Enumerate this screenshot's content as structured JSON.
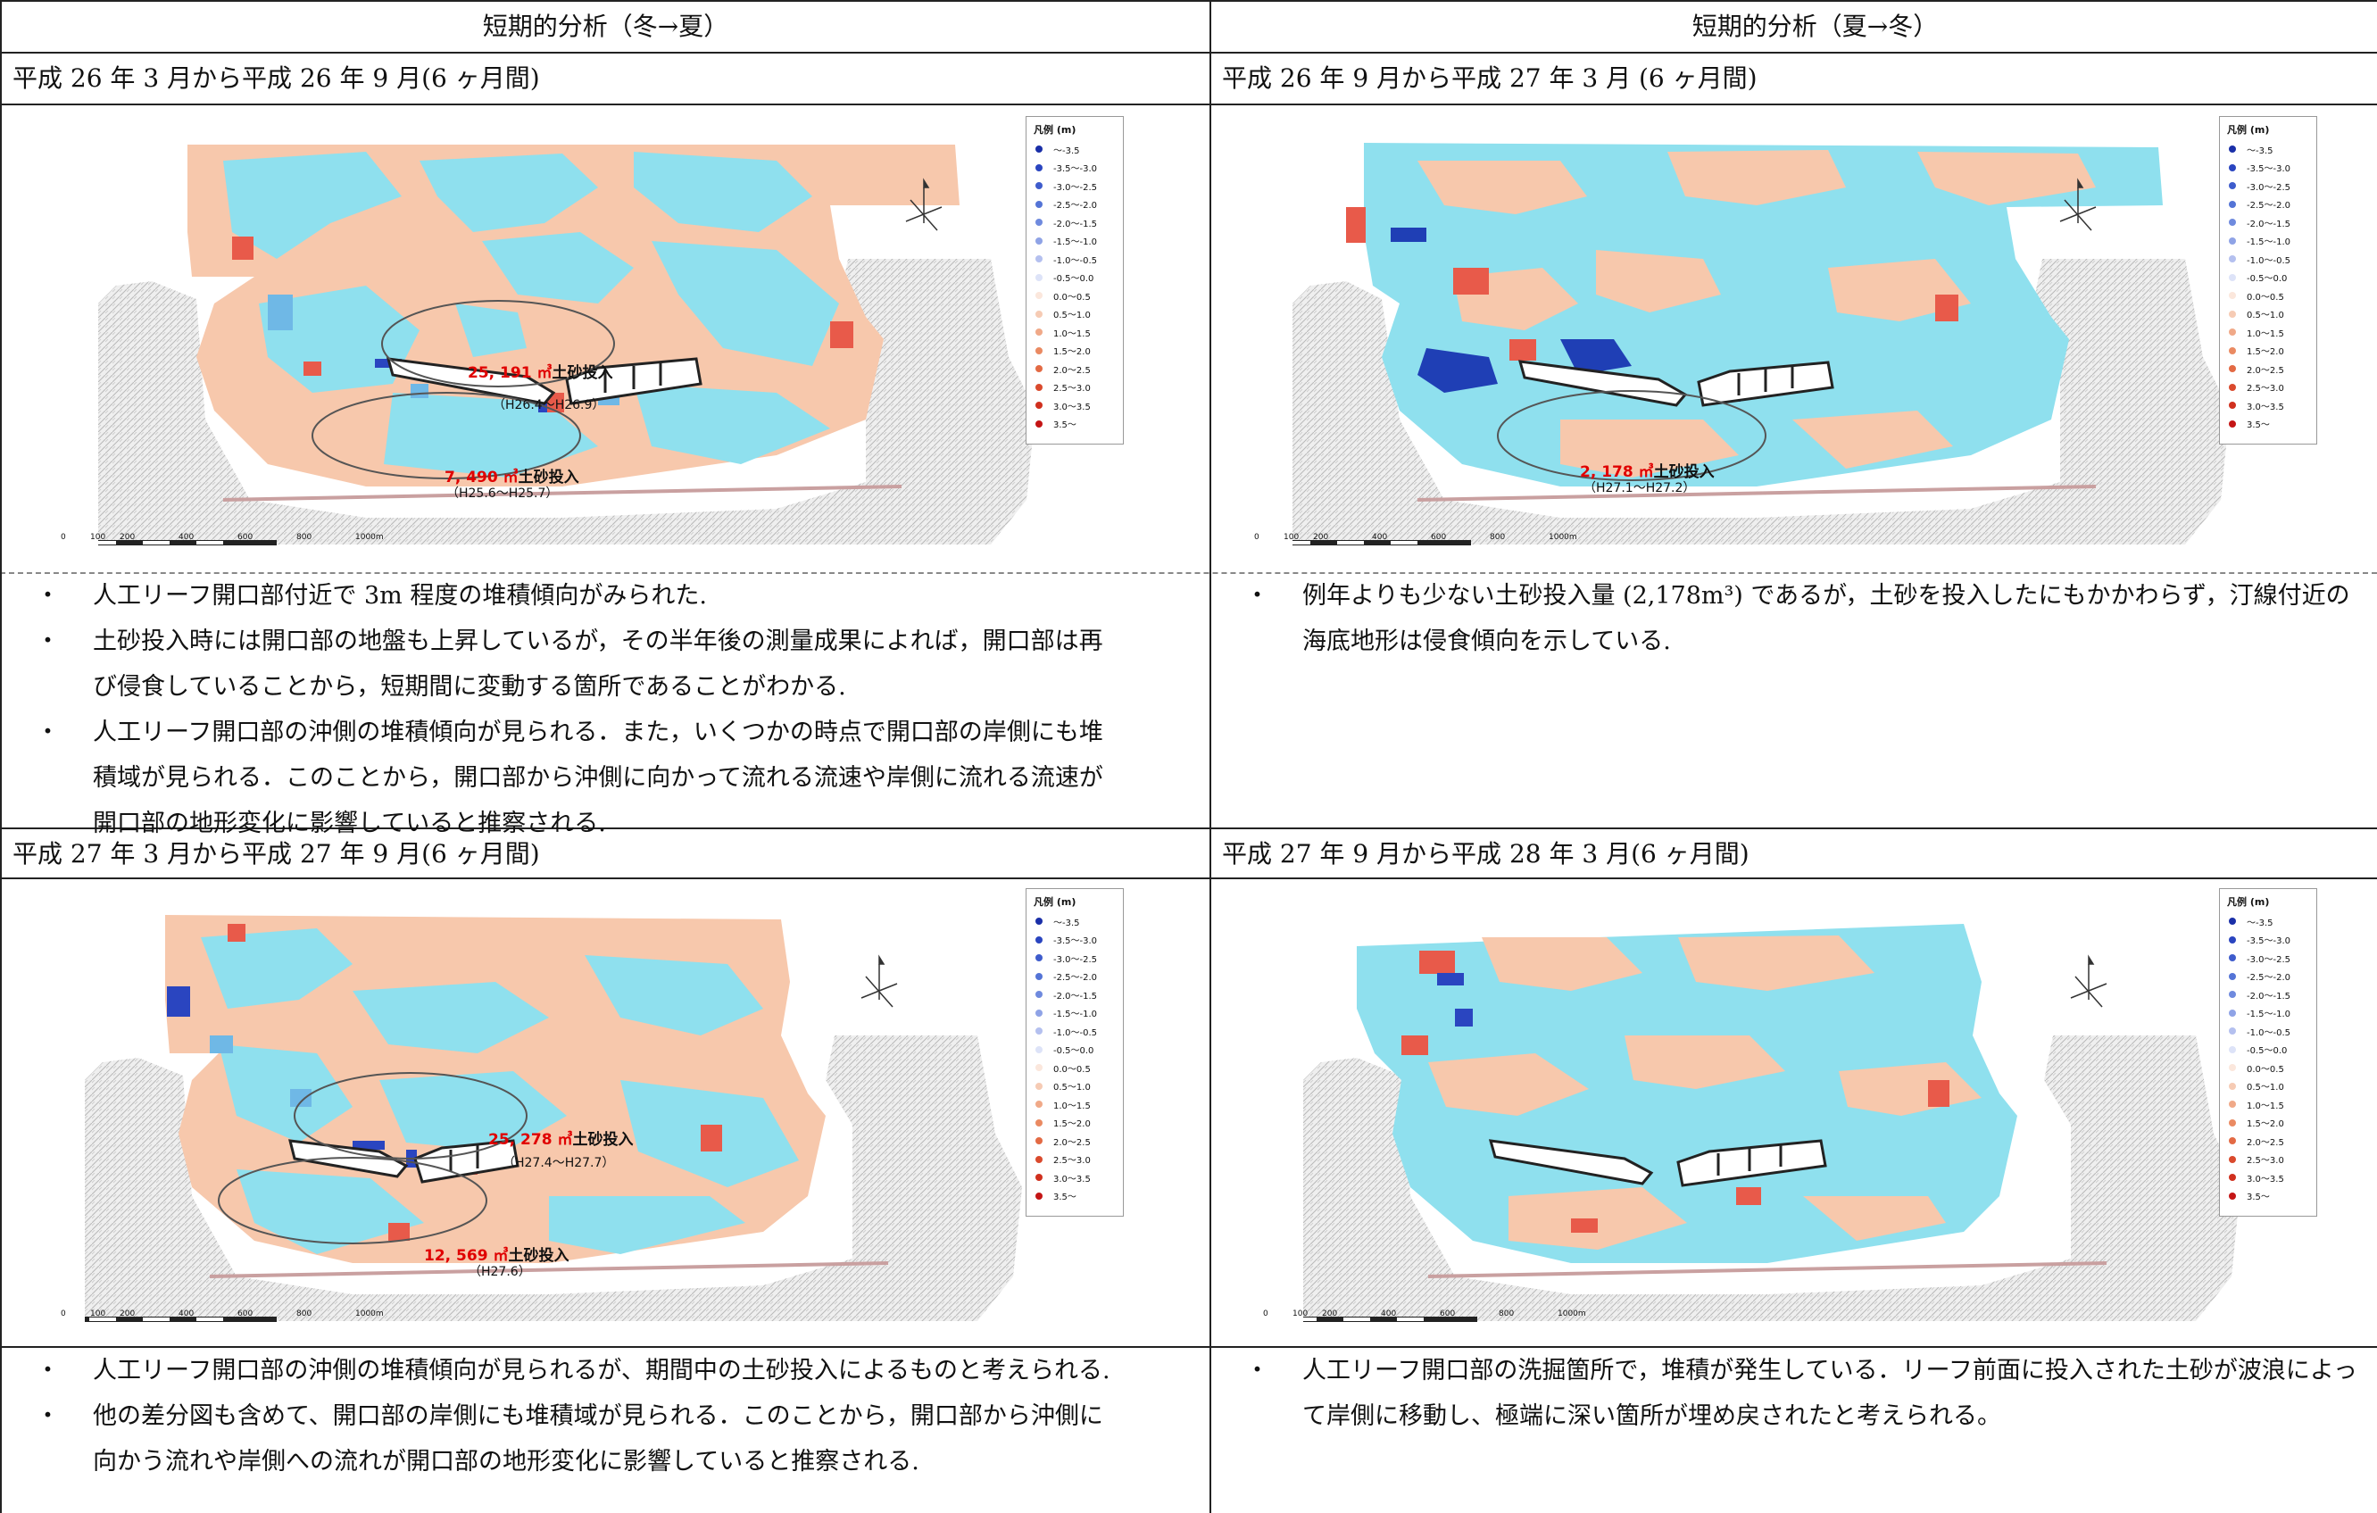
{
  "headers": {
    "left": "短期的分析（冬→夏）",
    "right": "短期的分析（夏→冬）"
  },
  "rows": [
    {
      "left": {
        "period": "平成 26 年 3 月から平成 26 年 9 月(6 ヶ月間)",
        "annotations": [
          {
            "amount": "25, 191 ㎥",
            "suffix": "土砂投入",
            "date": "（H26.4～H26.9）"
          },
          {
            "amount": "7, 490 ㎥",
            "suffix": "土砂投入",
            "date": "（H25.6～H25.7）"
          }
        ],
        "bullets": [
          "人工リーフ開口部付近で 3m 程度の堆積傾向がみられた.",
          "土砂投入時には開口部の地盤も上昇しているが，その半年後の測量成果によれば，開口部は再び侵食していることから，短期間に変動する箇所であることがわかる.",
          "人工リーフ開口部の沖側の堆積傾向が見られる．また，いくつかの時点で開口部の岸側にも堆積域が見られる．このことから，開口部から沖側に向かって流れる流速や岸側に流れる流速が開口部の地形変化に影響していると推察される."
        ]
      },
      "right": {
        "period": "平成 26 年 9 月から平成 27 年 3 月 (6 ヶ月間)",
        "annotations": [
          {
            "amount": "2, 178 ㎥",
            "suffix": "土砂投入",
            "date": "（H27.1～H27.2）"
          }
        ],
        "bullets": [
          "例年よりも少ない土砂投入量 (2,178m³) であるが，土砂を投入したにもかかわらず，汀線付近の海底地形は侵食傾向を示している."
        ]
      }
    },
    {
      "left": {
        "period": "平成 27 年 3 月から平成 27 年 9 月(6 ヶ月間)",
        "annotations": [
          {
            "amount": "25, 278 ㎥",
            "suffix": "土砂投入",
            "date": "（H27.4～H27.7）"
          },
          {
            "amount": "12, 569 ㎥",
            "suffix": "土砂投入",
            "date": "（H27.6）"
          }
        ],
        "bullets": [
          "人工リーフ開口部の沖側の堆積傾向が見られるが、期間中の土砂投入によるものと考えられる.",
          "他の差分図も含めて、開口部の岸側にも堆積域が見られる．このことから，開口部から沖側に向かう流れや岸側への流れが開口部の地形変化に影響していると推察される."
        ]
      },
      "right": {
        "period": "平成 27 年 9 月から平成 28 年 3 月(6 ヶ月間)",
        "annotations": [],
        "bullets": [
          "人工リーフ開口部の洗掘箇所で，堆積が発生している．リーフ前面に投入された土砂が波浪によって岸側に移動し、極端に深い箇所が埋め戻されたと考えられる。"
        ]
      }
    }
  ],
  "legend": {
    "title": "凡例 (m)",
    "items": [
      {
        "label": "～-3.5",
        "color": "#1a2fa8"
      },
      {
        "label": "-3.5～-3.0",
        "color": "#2a45c0"
      },
      {
        "label": "-3.0～-2.5",
        "color": "#3e5ccc"
      },
      {
        "label": "-2.5～-2.0",
        "color": "#5474d6"
      },
      {
        "label": "-2.0～-1.5",
        "color": "#6f8ade"
      },
      {
        "label": "-1.5～-1.0",
        "color": "#8fa3e6"
      },
      {
        "label": "-1.0～-0.5",
        "color": "#b4c0ef"
      },
      {
        "label": "-0.5～0.0",
        "color": "#dde3f8"
      },
      {
        "label": "0.0～0.5",
        "color": "#fbe7dc"
      },
      {
        "label": "0.5～1.0",
        "color": "#f6cbb4"
      },
      {
        "label": "1.0～1.5",
        "color": "#f0a988"
      },
      {
        "label": "1.5～2.0",
        "color": "#ea8a62"
      },
      {
        "label": "2.0～2.5",
        "color": "#e36a44"
      },
      {
        "label": "2.5～3.0",
        "color": "#da4a2d"
      },
      {
        "label": "3.0～3.5",
        "color": "#d0301e"
      },
      {
        "label": "3.5～",
        "color": "#c41515"
      }
    ]
  },
  "scale_labels": [
    "0",
    "100",
    "200",
    "400",
    "600",
    "800",
    "1000m"
  ],
  "colors": {
    "erosion": "#8fe0ee",
    "deposition": "#f7c8ac",
    "land": "#e9e9e9",
    "annotation_red": "#e00000"
  }
}
